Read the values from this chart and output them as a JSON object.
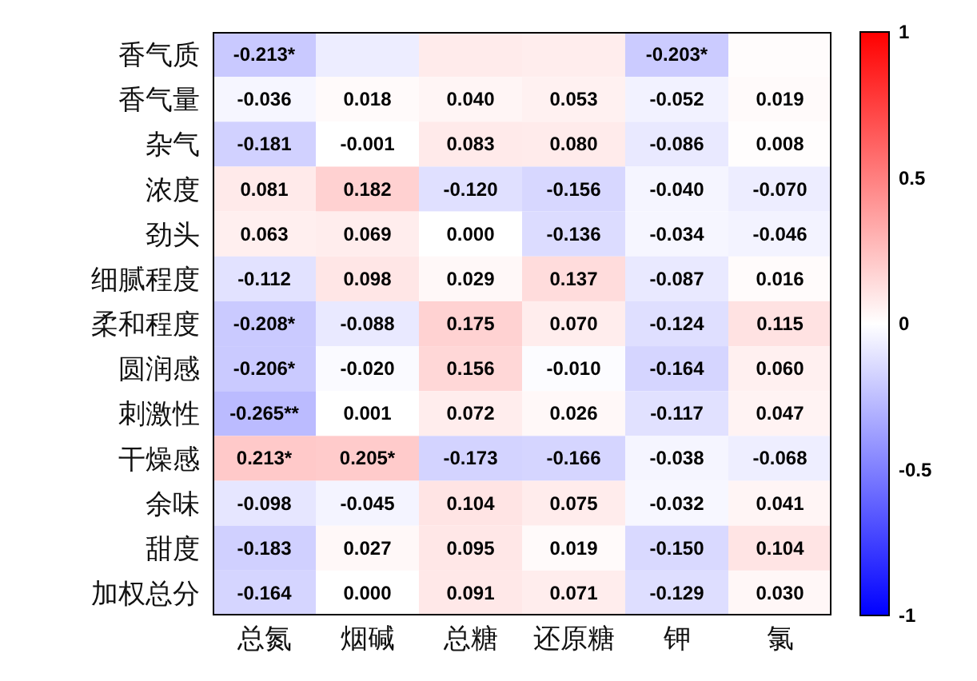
{
  "chart_data": {
    "type": "heatmap",
    "categories": [
      "总氮",
      "烟碱",
      "总糖",
      "还原糖",
      "钾",
      "氯"
    ],
    "y_categories": [
      "香气质",
      "香气量",
      "杂气",
      "浓度",
      "劲头",
      "细腻程度",
      "柔和程度",
      "圆润感",
      "刺激性",
      "干燥感",
      "余味",
      "甜度",
      "加权总分"
    ],
    "cells": [
      [
        -0.213,
        -0.07,
        0.08,
        0.07,
        -0.203,
        0.01
      ],
      [
        -0.036,
        0.018,
        0.04,
        0.053,
        -0.052,
        0.019
      ],
      [
        -0.181,
        -0.001,
        0.083,
        0.08,
        -0.086,
        0.008
      ],
      [
        0.081,
        0.182,
        -0.12,
        -0.156,
        -0.04,
        -0.07
      ],
      [
        0.063,
        0.069,
        0.0,
        -0.136,
        -0.034,
        -0.046
      ],
      [
        -0.112,
        0.098,
        0.029,
        0.137,
        -0.087,
        0.016
      ],
      [
        -0.208,
        -0.088,
        0.175,
        0.07,
        -0.124,
        0.115
      ],
      [
        -0.206,
        -0.02,
        0.156,
        -0.01,
        -0.164,
        0.06
      ],
      [
        -0.265,
        0.001,
        0.072,
        0.026,
        -0.117,
        0.047
      ],
      [
        0.213,
        0.205,
        -0.173,
        -0.166,
        -0.038,
        -0.068
      ],
      [
        -0.098,
        -0.045,
        0.104,
        0.075,
        -0.032,
        0.041
      ],
      [
        -0.183,
        0.027,
        0.095,
        0.019,
        -0.15,
        0.104
      ],
      [
        -0.164,
        0.0,
        0.091,
        0.071,
        -0.129,
        0.03
      ]
    ],
    "cell_labels": [
      [
        "-0.213*",
        null,
        null,
        null,
        "-0.203*",
        null
      ],
      [
        "-0.036",
        "0.018",
        "0.040",
        "0.053",
        "-0.052",
        "0.019"
      ],
      [
        "-0.181",
        "-0.001",
        "0.083",
        "0.080",
        "-0.086",
        "0.008"
      ],
      [
        "0.081",
        "0.182",
        "-0.120",
        "-0.156",
        "-0.040",
        "-0.070"
      ],
      [
        "0.063",
        "0.069",
        "0.000",
        "-0.136",
        "-0.034",
        "-0.046"
      ],
      [
        "-0.112",
        "0.098",
        "0.029",
        "0.137",
        "-0.087",
        "0.016"
      ],
      [
        "-0.208*",
        "-0.088",
        "0.175",
        "0.070",
        "-0.124",
        "0.115"
      ],
      [
        "-0.206*",
        "-0.020",
        "0.156",
        "-0.010",
        "-0.164",
        "0.060"
      ],
      [
        "-0.265**",
        "0.001",
        "0.072",
        "0.026",
        "-0.117",
        "0.047"
      ],
      [
        "0.213*",
        "0.205*",
        "-0.173",
        "-0.166",
        "-0.038",
        "-0.068"
      ],
      [
        "-0.098",
        "-0.045",
        "0.104",
        "0.075",
        "-0.032",
        "0.041"
      ],
      [
        "-0.183",
        "0.027",
        "0.095",
        "0.019",
        "-0.150",
        "0.104"
      ],
      [
        "-0.164",
        "0.000",
        "0.091",
        "0.071",
        "-0.129",
        "0.030"
      ]
    ],
    "clim": [
      -1,
      1
    ],
    "cticks": [
      -1,
      -0.5,
      0,
      0.5,
      1
    ]
  }
}
